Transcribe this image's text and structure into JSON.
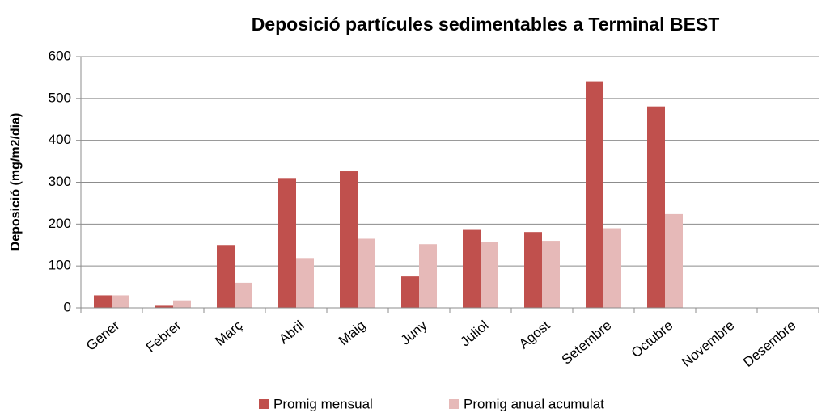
{
  "chart_data": {
    "type": "bar",
    "title": "Deposició partícules sedimentables a Terminal BEST",
    "y_label": "Deposició (mg/m2/dia)",
    "categories": [
      "Gener",
      "Febrer",
      "Març",
      "Abril",
      "Maig",
      "Juny",
      "Juliol",
      "Agost",
      "Setembre",
      "Octubre",
      "Novembre",
      "Desembre"
    ],
    "series": [
      {
        "name": "Promig mensual",
        "color": "#c0504d",
        "values": [
          30,
          5,
          150,
          310,
          326,
          75,
          188,
          181,
          541,
          481,
          null,
          null
        ]
      },
      {
        "name": "Promig anual acumulat",
        "color": "#e6b9b8",
        "values": [
          30,
          18,
          60,
          119,
          165,
          152,
          158,
          160,
          190,
          224,
          null,
          null
        ]
      }
    ],
    "ylim": [
      0,
      600
    ],
    "yticks": [
      0,
      100,
      200,
      300,
      400,
      500,
      600
    ],
    "grid": true,
    "legend": "bottom"
  }
}
